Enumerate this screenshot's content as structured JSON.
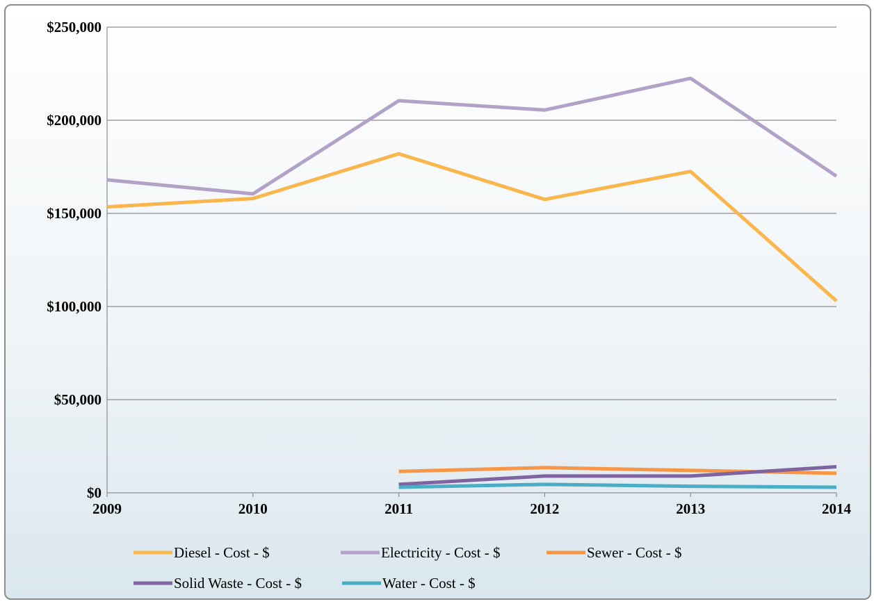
{
  "chart_data": {
    "type": "line",
    "title": "",
    "xlabel": "",
    "ylabel": "",
    "categories": [
      "2009",
      "2010",
      "2011",
      "2012",
      "2013",
      "2014"
    ],
    "ylim": [
      0,
      250000
    ],
    "yticks": [
      0,
      50000,
      100000,
      150000,
      200000,
      250000
    ],
    "ytick_labels": [
      "$0",
      "$50,000",
      "$100,000",
      "$150,000",
      "$200,000",
      "$250,000"
    ],
    "grid": true,
    "legend_position": "bottom",
    "series": [
      {
        "name": "Diesel - Cost - $",
        "color": "#f8b64c",
        "values": [
          153500,
          158000,
          182000,
          157500,
          172500,
          103000
        ]
      },
      {
        "name": "Electricity - Cost - $",
        "color": "#b2a2c7",
        "values": [
          168000,
          160500,
          210500,
          205500,
          222500,
          170000
        ]
      },
      {
        "name": "Sewer - Cost - $",
        "color": "#f79646",
        "values": [
          null,
          null,
          11500,
          13500,
          12000,
          10500
        ]
      },
      {
        "name": "Solid Waste - Cost - $",
        "color": "#8064a2",
        "values": [
          null,
          null,
          4500,
          9000,
          9000,
          14000
        ]
      },
      {
        "name": "Water - Cost - $",
        "color": "#4bacc6",
        "values": [
          null,
          null,
          3000,
          4500,
          3500,
          3000
        ]
      }
    ]
  }
}
